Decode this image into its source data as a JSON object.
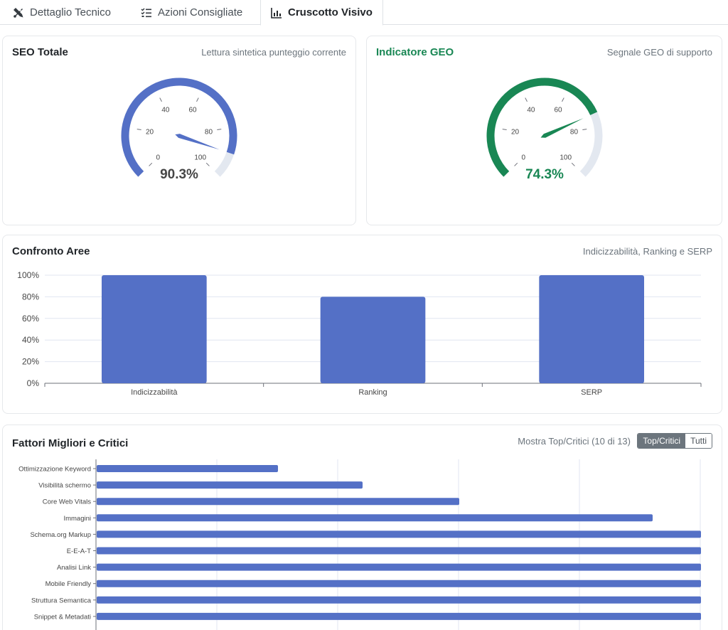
{
  "tabs": [
    {
      "label": "Dettaglio Tecnico",
      "icon": "tools-icon"
    },
    {
      "label": "Azioni Consigliate",
      "icon": "checklist-icon"
    },
    {
      "label": "Cruscotto Visivo",
      "icon": "bar-chart-icon",
      "active": true
    }
  ],
  "seo_card": {
    "title": "SEO Totale",
    "subtitle": "Lettura sintetica punteggio corrente",
    "value": 90.3,
    "value_label": "90.3%",
    "color": "#5470c6",
    "ticks": [
      "0",
      "20",
      "40",
      "60",
      "80",
      "100"
    ]
  },
  "geo_card": {
    "title": "Indicatore GEO",
    "subtitle": "Segnale GEO di supporto",
    "value": 74.3,
    "value_label": "74.3%",
    "color": "#198754",
    "ticks": [
      "0",
      "20",
      "40",
      "60",
      "80",
      "100"
    ]
  },
  "areas_card": {
    "title": "Confronto Aree",
    "subtitle": "Indicizzabilità, Ranking e SERP"
  },
  "factors_card": {
    "title": "Fattori Migliori e Critici",
    "subtitle": "Mostra Top/Critici (10 di 13)",
    "toggle_on": "Top/Critici",
    "toggle_off": "Tutti"
  },
  "colors": {
    "accent": "#5470c6",
    "geo": "#198754",
    "track": "#e3e8f0"
  },
  "chart_data": [
    {
      "type": "bar",
      "categories": [
        "Indicizzabilità",
        "Ranking",
        "SERP"
      ],
      "values": [
        100,
        80,
        100
      ],
      "ylim": [
        0,
        100
      ],
      "yticks": [
        "0%",
        "20%",
        "40%",
        "60%",
        "80%",
        "100%"
      ],
      "grid": true
    },
    {
      "type": "bar",
      "orientation": "horizontal",
      "categories": [
        "Ottimizzazione Keyword",
        "Visibilità schermo",
        "Core Web Vitals",
        "Immagini",
        "Schema.org Markup",
        "E-E-A-T",
        "Analisi Link",
        "Mobile Friendly",
        "Struttura Semantica",
        "Snippet & Metadati"
      ],
      "values": [
        30,
        44,
        60,
        92,
        100,
        100,
        100,
        100,
        100,
        100
      ],
      "xlim": [
        0,
        100
      ],
      "grid": true
    }
  ]
}
